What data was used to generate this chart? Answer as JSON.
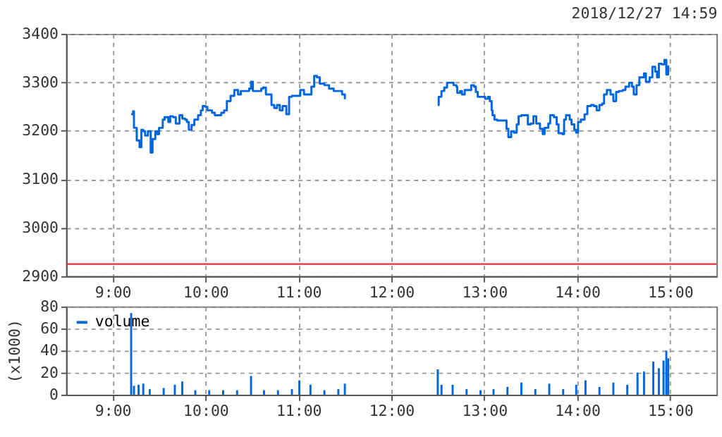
{
  "chart_data": [
    {
      "type": "step",
      "subtitle": "2018/12/27 14:59",
      "xlim": [
        8.5,
        15.5
      ],
      "xticks": [
        {
          "value": 9,
          "label": "9:00"
        },
        {
          "value": 10,
          "label": "10:00"
        },
        {
          "value": 11,
          "label": "11:00"
        },
        {
          "value": 12,
          "label": "12:00"
        },
        {
          "value": 13,
          "label": "13:00"
        },
        {
          "value": 14,
          "label": "14:00"
        },
        {
          "value": 15,
          "label": "15:00"
        }
      ],
      "ylim": [
        2900,
        3400
      ],
      "yticks": [
        2900,
        3000,
        3100,
        3200,
        3300,
        3400
      ],
      "grid": true,
      "ref_lines": [
        {
          "axis": "y",
          "value": 2925,
          "color": "#dd3333"
        }
      ],
      "series": [
        {
          "color": "#0066dd",
          "x": [
            9.2,
            9.22,
            9.23,
            9.26,
            9.29,
            9.31,
            9.33,
            9.35,
            9.38,
            9.41,
            9.43,
            9.46,
            9.48,
            9.5,
            9.54,
            9.56,
            9.6,
            9.62,
            9.65,
            9.68,
            9.72,
            9.75,
            9.78,
            9.8,
            9.82,
            9.85,
            9.88,
            9.92,
            9.95,
            9.97,
            10.0,
            10.02,
            10.07,
            10.1,
            10.14,
            10.17,
            10.2,
            10.23,
            10.27,
            10.31,
            10.35,
            10.38,
            10.42,
            10.47,
            10.49,
            10.51,
            10.57,
            10.6,
            10.62,
            10.65,
            10.69,
            10.71,
            10.74,
            10.77,
            10.8,
            10.83,
            10.87,
            10.9,
            10.93,
            10.98,
            11.02,
            11.06,
            11.11,
            11.14,
            11.17,
            11.2,
            11.23,
            11.28,
            11.33,
            11.38,
            11.43,
            11.47,
            11.5,
            12.0,
            12.5,
            12.51,
            12.54,
            12.57,
            12.6,
            12.65,
            12.67,
            12.7,
            12.71,
            12.74,
            12.76,
            12.79,
            12.84,
            12.86,
            12.89,
            12.91,
            12.93,
            12.98,
            13.01,
            13.04,
            13.06,
            13.08,
            13.09,
            13.11,
            13.14,
            13.22,
            13.24,
            13.26,
            13.29,
            13.32,
            13.35,
            13.37,
            13.4,
            13.44,
            13.47,
            13.5,
            13.53,
            13.56,
            13.6,
            13.63,
            13.65,
            13.69,
            13.71,
            13.75,
            13.78,
            13.8,
            13.84,
            13.86,
            13.88,
            13.92,
            13.94,
            13.97,
            13.99,
            14.01,
            14.04,
            14.08,
            14.11,
            14.15,
            14.18,
            14.21,
            14.24,
            14.27,
            14.29,
            14.32,
            14.36,
            14.39,
            14.42,
            14.45,
            14.49,
            14.52,
            14.56,
            14.59,
            14.61,
            14.64,
            14.67,
            14.69,
            14.72,
            14.74,
            14.78,
            14.81,
            14.84,
            14.86,
            14.88,
            14.91,
            14.94,
            14.96,
            14.98
          ],
          "values": [
            3234,
            3240,
            3206,
            3180,
            3166,
            3202,
            3199,
            3190,
            3199,
            3155,
            3183,
            3199,
            3193,
            3206,
            3223,
            3228,
            3218,
            3230,
            3228,
            3215,
            3232,
            3225,
            3223,
            3218,
            3202,
            3212,
            3223,
            3232,
            3242,
            3251,
            3249,
            3242,
            3237,
            3232,
            3232,
            3237,
            3242,
            3261,
            3272,
            3284,
            3275,
            3282,
            3282,
            3287,
            3301,
            3282,
            3282,
            3287,
            3289,
            3275,
            3275,
            3253,
            3247,
            3253,
            3242,
            3251,
            3234,
            3270,
            3272,
            3272,
            3284,
            3275,
            3275,
            3291,
            3313,
            3310,
            3297,
            3294,
            3287,
            3282,
            3282,
            3275,
            3265,
            null,
            3253,
            3270,
            3282,
            3289,
            3299,
            3299,
            3294,
            3291,
            3278,
            3282,
            3275,
            3284,
            3284,
            3294,
            3291,
            3280,
            3270,
            3270,
            3266,
            3270,
            3261,
            3242,
            3232,
            3223,
            3221,
            3221,
            3204,
            3187,
            3199,
            3196,
            3213,
            3230,
            3232,
            3232,
            3213,
            3215,
            3230,
            3215,
            3204,
            3193,
            3206,
            3215,
            3232,
            3228,
            3213,
            3195,
            3193,
            3223,
            3232,
            3223,
            3213,
            3202,
            3196,
            3218,
            3223,
            3234,
            3251,
            3253,
            3251,
            3242,
            3253,
            3256,
            3275,
            3284,
            3275,
            3261,
            3280,
            3282,
            3284,
            3291,
            3299,
            3291,
            3275,
            3294,
            3310,
            3310,
            3318,
            3301,
            3310,
            3332,
            3322,
            3310,
            3338,
            3337,
            3346,
            3316,
            3335
          ]
        }
      ]
    },
    {
      "type": "bar",
      "ylabel": "(x1000)",
      "legend": "top left",
      "xlim": [
        8.5,
        15.5
      ],
      "xticks": [
        {
          "value": 9,
          "label": "9:00"
        },
        {
          "value": 10,
          "label": "10:00"
        },
        {
          "value": 11,
          "label": "11:00"
        },
        {
          "value": 12,
          "label": "12:00"
        },
        {
          "value": 13,
          "label": "13:00"
        },
        {
          "value": 14,
          "label": "14:00"
        },
        {
          "value": 15,
          "label": "15:00"
        }
      ],
      "ylim": [
        0,
        80
      ],
      "yticks": [
        0,
        20,
        40,
        60,
        80
      ],
      "grid": true,
      "series": [
        {
          "name": "volume",
          "color": "#0066dd",
          "x": [
            9.2,
            9.23,
            9.28,
            9.33,
            9.4,
            9.55,
            9.67,
            9.75,
            9.89,
            10.04,
            10.19,
            10.34,
            10.49,
            10.63,
            10.78,
            10.93,
            11.01,
            11.13,
            11.28,
            11.43,
            11.5,
            12.5,
            12.54,
            12.66,
            12.81,
            12.96,
            13.1,
            13.25,
            13.4,
            13.55,
            13.7,
            13.85,
            13.99,
            14.09,
            14.24,
            14.39,
            14.54,
            14.65,
            14.72,
            14.82,
            14.88,
            14.93,
            14.96,
            14.98
          ],
          "values": [
            74,
            8,
            9,
            10,
            5,
            6,
            9,
            12,
            4,
            4,
            4,
            4,
            17,
            4,
            4,
            5,
            13,
            9,
            4,
            5,
            10,
            23,
            9,
            9,
            5,
            4,
            5,
            7,
            11,
            5,
            10,
            5,
            9,
            13,
            7,
            11,
            9,
            20,
            21,
            30,
            24,
            31,
            40,
            33
          ]
        }
      ]
    }
  ]
}
